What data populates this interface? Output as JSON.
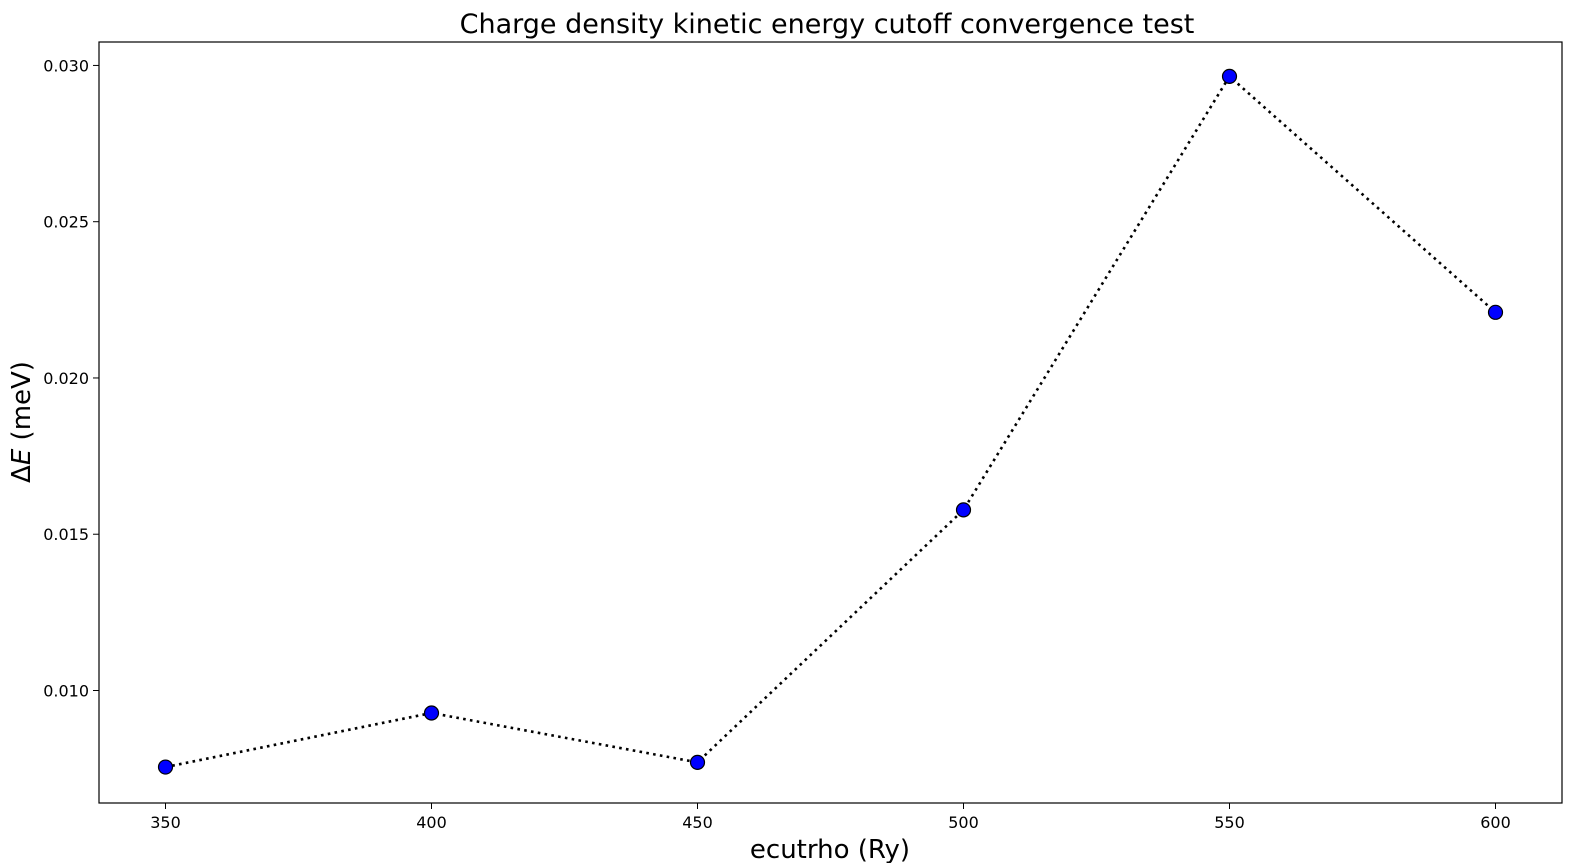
{
  "chart_data": {
    "type": "line",
    "title": "Charge density kinetic energy cutoff convergence test",
    "xlabel": "ecutrho (Ry)",
    "ylabel_delta": "Δ",
    "ylabel_var": "E",
    "ylabel_unit": " (meV)",
    "x": [
      350,
      400,
      450,
      500,
      550,
      600
    ],
    "series": [
      {
        "values": [
          0.00755,
          0.00928,
          0.0077,
          0.01578,
          0.02965,
          0.0221
        ],
        "line_color": "#000000",
        "line_style": "dotted",
        "marker": "circle",
        "marker_color": "#0000ff",
        "marker_edge": "#000000"
      }
    ],
    "xlim": [
      337.5,
      612.5
    ],
    "ylim": [
      0.0064,
      0.03075
    ],
    "xticks": [
      350,
      400,
      450,
      500,
      550,
      600
    ],
    "xtick_labels": [
      "350",
      "400",
      "450",
      "500",
      "550",
      "600"
    ],
    "yticks": [
      0.01,
      0.015,
      0.02,
      0.025,
      0.03
    ],
    "ytick_labels": [
      "0.010",
      "0.015",
      "0.020",
      "0.025",
      "0.030"
    ],
    "grid": false,
    "legend": "none"
  }
}
